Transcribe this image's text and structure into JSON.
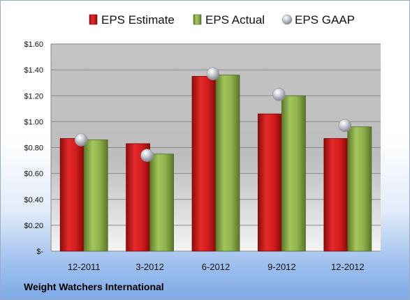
{
  "company": "Weight Watchers International",
  "chart_data": {
    "type": "bar",
    "categories": [
      "12-2011",
      "3-2012",
      "6-2012",
      "9-2012",
      "12-2012"
    ],
    "series": [
      {
        "name": "EPS Estimate",
        "type": "bar",
        "color": "#cc1f1f",
        "values": [
          0.87,
          0.83,
          1.35,
          1.06,
          0.87
        ]
      },
      {
        "name": "EPS Actual",
        "type": "bar",
        "color": "#8cb04a",
        "values": [
          0.86,
          0.75,
          1.36,
          1.2,
          0.96
        ]
      },
      {
        "name": "EPS GAAP",
        "type": "scatter",
        "color": "#b8bcc4",
        "values": [
          0.86,
          0.74,
          1.37,
          1.21,
          0.97
        ]
      }
    ],
    "ylim": [
      0,
      1.6
    ],
    "yticks": [
      0,
      0.2,
      0.4,
      0.6,
      0.8,
      1.0,
      1.2,
      1.4,
      1.6
    ],
    "ytick_labels": [
      "$-",
      "$0.20",
      "$0.40",
      "$0.60",
      "$0.80",
      "$1.00",
      "$1.20",
      "$1.40",
      "$1.60"
    ],
    "grid": true,
    "legend_position": "top"
  }
}
